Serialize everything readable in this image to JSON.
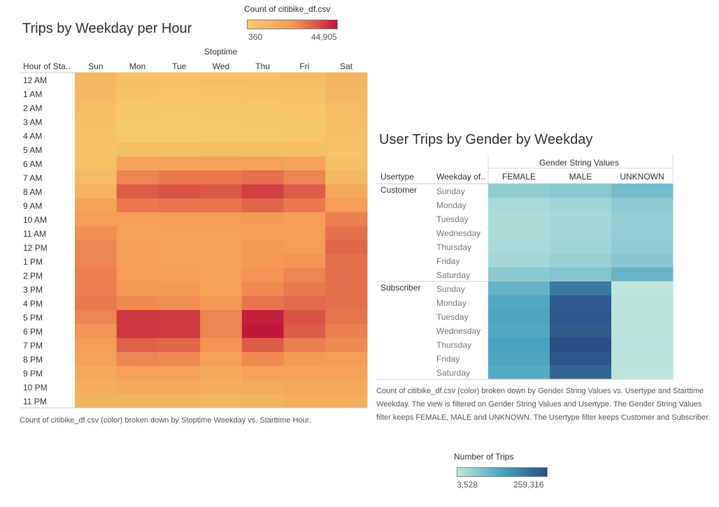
{
  "charts_meta": {
    "left_title": "Trips by Weekday per Hour",
    "left_legend_title": "Count of citibike_df.csv",
    "left_legend_min": "360",
    "left_legend_max": "44,905",
    "left_col_group": "Stoptime",
    "left_row_header": "Hour of Sta..",
    "left_caption": "Count of citibike_df.csv (color) broken down by Stoptime Weekday vs. Starttime Hour.",
    "right_title": "User Trips by Gender by Weekday",
    "right_col_group": "Gender String Values",
    "right_h_usertype": "Usertype",
    "right_h_weekday": "Weekday of..",
    "right_caption": "Count of citibike_df.csv (color) broken down by Gender String Values vs. Usertype and Starttime Weekday. The view is filtered on Gender String Values and Usertype. The Gender String Values filter keeps FEMALE, MALE and UNKNOWN. The Usertype filter keeps Customer and Subscriber.",
    "right_legend_title": "Number of Trips",
    "right_legend_min": "3,528",
    "right_legend_max": "259,316",
    "colors": {
      "heat_low": "#f5c96a",
      "heat_mid": "#f59a55",
      "heat_high": "#c0183a",
      "teal_low": "#bfe6dd",
      "teal_mid": "#49a3bf",
      "teal_high": "#2b4e82"
    }
  },
  "chart_data": [
    {
      "type": "heatmap",
      "title": "Trips by Weekday per Hour",
      "xlabel": "Stoptime",
      "ylabel": "Hour of Sta..",
      "legend_title": "Count of citibike_df.csv",
      "color_range": [
        360,
        44905
      ],
      "columns": [
        "Sun",
        "Mon",
        "Tue",
        "Wed",
        "Thu",
        "Fri",
        "Sat"
      ],
      "rows": [
        "12 AM",
        "1 AM",
        "2 AM",
        "3 AM",
        "4 AM",
        "5 AM",
        "6 AM",
        "7 AM",
        "8 AM",
        "9 AM",
        "10 AM",
        "11 AM",
        "12 PM",
        "1 PM",
        "2 PM",
        "3 PM",
        "4 PM",
        "5 PM",
        "6 PM",
        "7 PM",
        "8 PM",
        "9 PM",
        "10 PM",
        "11 PM"
      ],
      "values": [
        [
          6000,
          2500,
          2400,
          2800,
          3000,
          3500,
          6500
        ],
        [
          4500,
          1200,
          1100,
          1300,
          1500,
          1800,
          5000
        ],
        [
          3500,
          700,
          650,
          800,
          900,
          1100,
          4000
        ],
        [
          2500,
          450,
          400,
          500,
          550,
          700,
          3000
        ],
        [
          1800,
          360,
          380,
          420,
          450,
          550,
          2200
        ],
        [
          1500,
          2500,
          2700,
          2800,
          2900,
          2700,
          1700
        ],
        [
          2200,
          13000,
          14000,
          14000,
          15000,
          13000,
          2500
        ],
        [
          4000,
          22000,
          24000,
          24000,
          26000,
          22000,
          5000
        ],
        [
          7000,
          30000,
          32000,
          31000,
          36000,
          30000,
          12000
        ],
        [
          14000,
          24000,
          25000,
          25000,
          28000,
          24000,
          17000
        ],
        [
          17000,
          16000,
          17000,
          17000,
          18000,
          16000,
          23000
        ],
        [
          20000,
          15000,
          15000,
          15000,
          17000,
          16000,
          26000
        ],
        [
          22000,
          16000,
          15000,
          15000,
          18000,
          17000,
          28000
        ],
        [
          22000,
          16000,
          15000,
          15000,
          18000,
          19000,
          26000
        ],
        [
          23000,
          17000,
          16000,
          15000,
          19000,
          22000,
          26000
        ],
        [
          23000,
          18000,
          18000,
          15000,
          21000,
          24000,
          26000
        ],
        [
          24000,
          21000,
          20000,
          18000,
          25000,
          27000,
          26000
        ],
        [
          22000,
          38000,
          37000,
          22000,
          43000,
          32000,
          25000
        ],
        [
          19000,
          38000,
          37000,
          22000,
          44905,
          30000,
          23000
        ],
        [
          17000,
          29000,
          28000,
          19000,
          30000,
          23000,
          21000
        ],
        [
          14000,
          22000,
          21000,
          15000,
          21000,
          18000,
          17000
        ],
        [
          11000,
          15000,
          15000,
          11000,
          14000,
          14000,
          14000
        ],
        [
          9000,
          11000,
          11000,
          9000,
          10000,
          12000,
          12000
        ],
        [
          7000,
          7000,
          7000,
          6000,
          7000,
          9000,
          9000
        ]
      ]
    },
    {
      "type": "heatmap",
      "title": "User Trips by Gender by Weekday",
      "xlabel": "Gender String Values",
      "legend_title": "Number of Trips",
      "color_range": [
        3528,
        259316
      ],
      "columns": [
        "FEMALE",
        "MALE",
        "UNKNOWN"
      ],
      "groups": [
        {
          "name": "Customer",
          "rows": [
            "Sunday",
            "Monday",
            "Tuesday",
            "Wednesday",
            "Thursday",
            "Friday",
            "Saturday"
          ],
          "values": [
            [
              20000,
              25000,
              40000
            ],
            [
              8000,
              12000,
              22000
            ],
            [
              7000,
              10000,
              18000
            ],
            [
              7000,
              11000,
              18000
            ],
            [
              8000,
              12000,
              20000
            ],
            [
              10000,
              16000,
              26000
            ],
            [
              24000,
              30000,
              55000
            ]
          ]
        },
        {
          "name": "Subscriber",
          "rows": [
            "Sunday",
            "Monday",
            "Tuesday",
            "Wednesday",
            "Thursday",
            "Friday",
            "Saturday"
          ],
          "values": [
            [
              55000,
              160000,
              3528
            ],
            [
              75000,
              230000,
              4000
            ],
            [
              80000,
              235000,
              4000
            ],
            [
              75000,
              225000,
              4000
            ],
            [
              85000,
              259316,
              4200
            ],
            [
              80000,
              240000,
              4000
            ],
            [
              70000,
              205000,
              3800
            ]
          ]
        }
      ]
    }
  ]
}
